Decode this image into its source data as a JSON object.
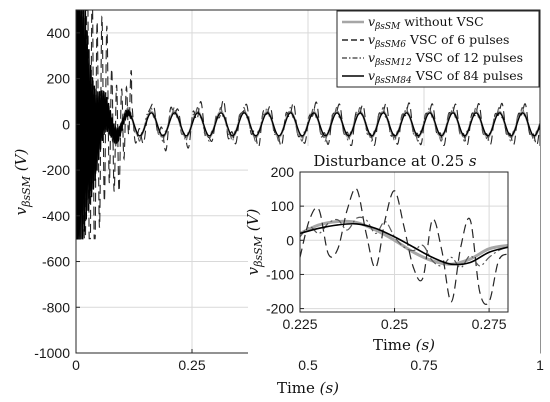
{
  "chart_data": [
    {
      "type": "line",
      "title": "",
      "xlabel_main": "Time ",
      "xlabel_unit": "(s)",
      "ylabel_main": "v",
      "ylabel_sub": "βsSM",
      "ylabel_unit": "(V)",
      "xlim": [
        0,
        1
      ],
      "ylim": [
        -1000,
        500
      ],
      "x_ticks": [
        0,
        0.25,
        0.5,
        0.75,
        1
      ],
      "x_tick_labels": [
        "0",
        "0.25",
        "0.5",
        "0.75",
        "1"
      ],
      "y_ticks": [
        -1000,
        -800,
        -600,
        -400,
        -200,
        0,
        200,
        400
      ],
      "y_tick_labels": [
        "-1000",
        "-800",
        "-600",
        "-400",
        "-200",
        "0",
        "200",
        "400"
      ],
      "grid": true,
      "legend_position": "top-right",
      "signal_frequency_hz": 20,
      "series": [
        {
          "key": "without",
          "sym_sub": "βsSM",
          "text": "without VSC",
          "color": "#a6a6a6",
          "style": "solid",
          "steady_amplitude": 55
        },
        {
          "key": "p6",
          "sym_sub": "βsSM6",
          "text": "VSC of 6 pulses",
          "color": "#262626",
          "style": "dashed",
          "steady_amplitude": 75
        },
        {
          "key": "p12",
          "sym_sub": "βsSM12",
          "text": "VSC of 12 pulses",
          "color": "#595959",
          "style": "dashdot",
          "steady_amplitude": 62
        },
        {
          "key": "p84",
          "sym_sub": "βsSM84",
          "text": "VSC of 84 pulses",
          "color": "#000000",
          "style": "solid",
          "steady_amplitude": 50
        }
      ],
      "transient": {
        "start": 0,
        "end": 0.12,
        "clip_min": -500,
        "clip_max": 500
      }
    },
    {
      "type": "line",
      "title_main": "Disturbance at 0.25 ",
      "title_unit": "s",
      "xlabel_main": "Time ",
      "xlabel_unit": "(s)",
      "ylabel_main": "v",
      "ylabel_sub": "βsSM",
      "ylabel_unit": "(V)",
      "xlim": [
        0.225,
        0.28
      ],
      "ylim": [
        -210,
        200
      ],
      "x_ticks": [
        0.225,
        0.25,
        0.275
      ],
      "x_tick_labels": [
        "0.225",
        "0.25",
        "0.275"
      ],
      "y_ticks": [
        -200,
        -100,
        0,
        100,
        200
      ],
      "y_tick_labels": [
        "-200",
        "-100",
        "0",
        "100",
        "200"
      ],
      "grid": true,
      "series": [
        {
          "key": "without",
          "x": [
            0.225,
            0.23,
            0.235,
            0.24,
            0.245,
            0.25,
            0.255,
            0.26,
            0.265,
            0.27,
            0.275,
            0.28
          ],
          "y": [
            20,
            45,
            55,
            52,
            30,
            0,
            -35,
            -60,
            -70,
            -55,
            -25,
            -15
          ]
        },
        {
          "key": "p6",
          "x": [
            0.225,
            0.2275,
            0.23,
            0.2325,
            0.235,
            0.2375,
            0.24,
            0.2425,
            0.245,
            0.2475,
            0.25,
            0.2525,
            0.255,
            0.2575,
            0.26,
            0.2625,
            0.265,
            0.2675,
            0.27,
            0.2725,
            0.275,
            0.2775,
            0.28
          ],
          "y": [
            -50,
            60,
            90,
            -40,
            -25,
            90,
            150,
            20,
            -80,
            60,
            145,
            40,
            -80,
            -110,
            60,
            -30,
            -180,
            -20,
            60,
            -150,
            -180,
            -60,
            -40
          ]
        },
        {
          "key": "p12",
          "x": [
            0.225,
            0.2275,
            0.23,
            0.2325,
            0.235,
            0.2375,
            0.24,
            0.2425,
            0.245,
            0.2475,
            0.25,
            0.2525,
            0.255,
            0.2575,
            0.26,
            0.2625,
            0.265,
            0.2675,
            0.27,
            0.2725,
            0.275,
            0.2775,
            0.28
          ],
          "y": [
            10,
            40,
            20,
            50,
            60,
            30,
            65,
            60,
            20,
            55,
            10,
            -20,
            -30,
            -15,
            -60,
            -75,
            -50,
            -80,
            -45,
            -75,
            -50,
            -30,
            -20
          ]
        },
        {
          "key": "p84",
          "x": [
            0.225,
            0.23,
            0.235,
            0.24,
            0.245,
            0.25,
            0.255,
            0.26,
            0.265,
            0.27,
            0.275,
            0.28
          ],
          "y": [
            20,
            35,
            45,
            48,
            35,
            10,
            -20,
            -50,
            -70,
            -65,
            -35,
            -20
          ]
        }
      ]
    }
  ]
}
